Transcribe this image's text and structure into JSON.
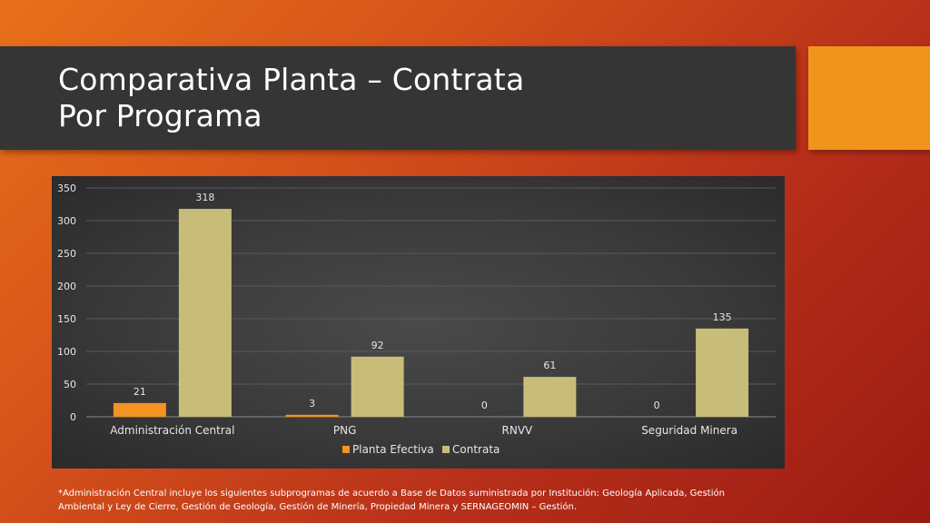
{
  "slide": {
    "title": "Comparativa Planta – Contrata\nPor Programa",
    "footnote": "*Administración Central incluye los siguientes subprogramas de acuerdo a Base de Datos suministrada por Institución: Geología Aplicada, Gestión Ambiental y Ley de Cierre, Gestión de Geología, Gestión de Minería, Propiedad Minera y SERNAGEOMIN – Gestión."
  },
  "colors": {
    "planta": "#f39322",
    "contrata": "#c8bd78",
    "accent": "#f0951c",
    "title_bar": "#353535"
  },
  "chart_data": {
    "type": "bar",
    "categories": [
      "Administración Central",
      "PNG",
      "RNVV",
      "Seguridad Minera"
    ],
    "series": [
      {
        "name": "Planta Efectiva",
        "values": [
          21,
          3,
          0,
          0
        ]
      },
      {
        "name": "Contrata",
        "values": [
          318,
          92,
          61,
          135
        ]
      }
    ],
    "ylim": [
      0,
      350
    ],
    "yticks": [
      0,
      50,
      100,
      150,
      200,
      250,
      300,
      350
    ],
    "grid": true,
    "legend": "bottom",
    "data_labels": true
  }
}
